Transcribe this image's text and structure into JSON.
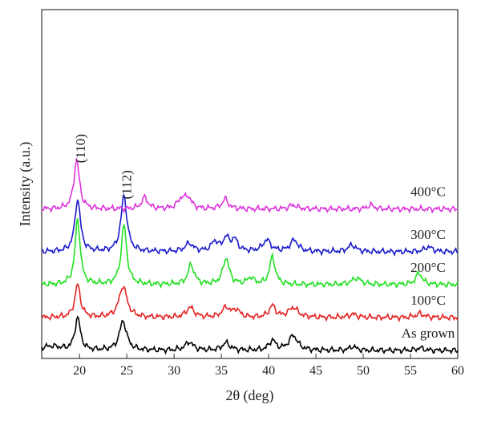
{
  "chart_data": {
    "type": "line",
    "xlabel": "2θ (deg)",
    "ylabel": "Intensity (a.u.)",
    "xlim": [
      16,
      60
    ],
    "x_ticks": [
      20,
      25,
      30,
      35,
      40,
      45,
      50,
      55,
      60
    ],
    "y_ticks": [],
    "grid": false,
    "peak_labels": [
      {
        "text": "(110)",
        "x": 19.8
      },
      {
        "text": "(112)",
        "x": 24.7
      }
    ],
    "series": [
      {
        "name": "As grown",
        "color": "#000000",
        "baseline": 0.0,
        "peaks": [
          [
            19.8,
            1.0,
            0.35
          ],
          [
            24.6,
            0.9,
            0.45
          ],
          [
            31.6,
            0.25,
            0.5
          ],
          [
            35.5,
            0.22,
            0.5
          ],
          [
            40.4,
            0.3,
            0.4
          ],
          [
            42.6,
            0.45,
            0.55
          ],
          [
            48.9,
            0.12,
            0.4
          ],
          [
            56.0,
            0.08,
            0.4
          ]
        ]
      },
      {
        "name": "100°C",
        "color": "#e52222",
        "baseline": 1.0,
        "peaks": [
          [
            19.8,
            1.0,
            0.35
          ],
          [
            24.6,
            0.95,
            0.5
          ],
          [
            31.7,
            0.3,
            0.5
          ],
          [
            35.5,
            0.3,
            0.5
          ],
          [
            36.6,
            0.22,
            0.4
          ],
          [
            40.4,
            0.35,
            0.4
          ],
          [
            42.6,
            0.3,
            0.6
          ],
          [
            48.9,
            0.1,
            0.5
          ],
          [
            56.0,
            0.12,
            0.5
          ]
        ]
      },
      {
        "name": "200°C",
        "color": "#22e022",
        "baseline": 2.0,
        "peaks": [
          [
            19.8,
            2.0,
            0.32
          ],
          [
            24.7,
            1.8,
            0.35
          ],
          [
            31.8,
            0.6,
            0.4
          ],
          [
            35.5,
            0.8,
            0.4
          ],
          [
            40.4,
            0.85,
            0.35
          ],
          [
            38.1,
            0.2,
            0.4
          ],
          [
            49.3,
            0.2,
            0.6
          ],
          [
            55.9,
            0.35,
            0.4
          ]
        ]
      },
      {
        "name": "300°C",
        "color": "#1a1acc",
        "baseline": 3.0,
        "peaks": [
          [
            19.8,
            1.6,
            0.35
          ],
          [
            24.7,
            1.7,
            0.38
          ],
          [
            31.6,
            0.25,
            0.5
          ],
          [
            34.3,
            0.3,
            0.4
          ],
          [
            35.5,
            0.4,
            0.4
          ],
          [
            36.4,
            0.35,
            0.4
          ],
          [
            39.8,
            0.35,
            0.5
          ],
          [
            42.7,
            0.35,
            0.5
          ],
          [
            48.8,
            0.2,
            0.5
          ],
          [
            56.9,
            0.15,
            0.5
          ]
        ]
      },
      {
        "name": "400°C",
        "color": "#dd33dd",
        "baseline": 4.3,
        "peaks": [
          [
            19.7,
            1.5,
            0.35
          ],
          [
            26.9,
            0.35,
            0.4
          ],
          [
            30.8,
            0.3,
            0.5
          ],
          [
            31.5,
            0.3,
            0.4
          ],
          [
            35.4,
            0.3,
            0.4
          ],
          [
            42.6,
            0.12,
            0.5
          ],
          [
            50.8,
            0.12,
            0.4
          ]
        ]
      }
    ]
  }
}
